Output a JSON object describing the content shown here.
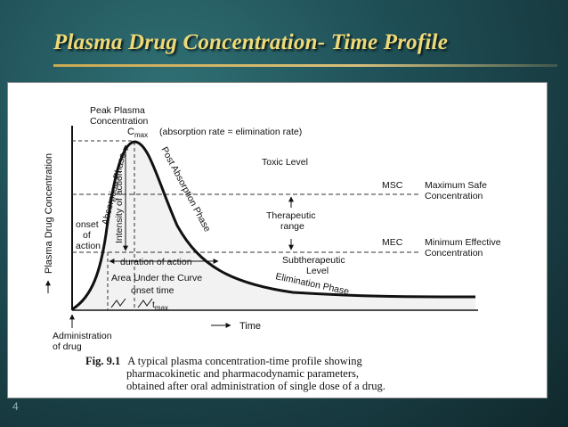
{
  "slide": {
    "title": "Plasma Drug Concentration- Time Profile",
    "page_number": "4"
  },
  "diagram": {
    "y_axis_label": "Plasma Drug Concentration",
    "x_axis_label": "Time",
    "peak_label_1": "Peak Plasma",
    "peak_label_2": "Concentration",
    "cmax_label": "C",
    "cmax_sub": "max",
    "cmax_note": "(absorption rate = elimination rate)",
    "absorption_phase": "Absorption Phase",
    "post_absorption_phase": "Post Absorption Phase",
    "intensity_of_action": "Intensity of action",
    "toxic_level": "Toxic Level",
    "msc_abbr": "MSC",
    "msc_1": "Maximum Safe",
    "msc_2": "Concentration",
    "therapeutic_1": "Therapeutic",
    "therapeutic_2": "range",
    "mec_abbr": "MEC",
    "mec_1": "Minimum Effective",
    "mec_2": "Concentration",
    "onset_1": "onset",
    "onset_2": "of",
    "onset_3": "action",
    "duration_of_action": "duration of action",
    "subtherapeutic_1": "Subtherapeutic",
    "subtherapeutic_2": "Level",
    "elimination_phase": "Elimination Phase",
    "auc": "Area Under the Curve",
    "onset_time": "onset time",
    "tmax_label": "t",
    "tmax_sub": "max",
    "admin_1": "Administration",
    "admin_2": "of drug"
  },
  "caption": {
    "fig_no": "Fig. 9.1",
    "line1": "A typical plasma concentration-time profile showing",
    "line2": "pharmacokinetic and pharmacodynamic parameters,",
    "line3": "obtained after oral administration of single dose of a drug."
  }
}
